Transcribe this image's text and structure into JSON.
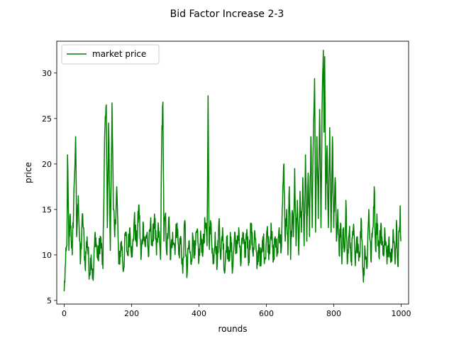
{
  "chart_data": {
    "type": "line",
    "title": "Bid Factor Increase 2-3",
    "xlabel": "rounds",
    "ylabel": "price",
    "xlim": [
      -22,
      1022
    ],
    "ylim": [
      4.6,
      33.5
    ],
    "xticks": [
      0,
      200,
      400,
      600,
      800,
      1000
    ],
    "yticks": [
      5,
      10,
      15,
      20,
      25,
      30
    ],
    "grid": false,
    "legend_position": "upper left",
    "series": [
      {
        "name": "market price",
        "color": "#008000",
        "n_points": 1000,
        "keypoints": [
          [
            0,
            6.0
          ],
          [
            4,
            9.0
          ],
          [
            8,
            11.0
          ],
          [
            10,
            21.0
          ],
          [
            14,
            10.5
          ],
          [
            18,
            14.5
          ],
          [
            24,
            10.0
          ],
          [
            30,
            18.0
          ],
          [
            34,
            23.0
          ],
          [
            37,
            12.0
          ],
          [
            42,
            16.5
          ],
          [
            48,
            9.0
          ],
          [
            55,
            14.5
          ],
          [
            62,
            8.8
          ],
          [
            68,
            12.0
          ],
          [
            75,
            8.0
          ],
          [
            80,
            10.0
          ],
          [
            86,
            7.2
          ],
          [
            92,
            12.5
          ],
          [
            100,
            9.5
          ],
          [
            108,
            12.0
          ],
          [
            115,
            8.5
          ],
          [
            120,
            22.8
          ],
          [
            125,
            26.5
          ],
          [
            128,
            13.0
          ],
          [
            132,
            24.5
          ],
          [
            137,
            10.5
          ],
          [
            142,
            26.7
          ],
          [
            146,
            15.0
          ],
          [
            150,
            12.0
          ],
          [
            156,
            17.5
          ],
          [
            162,
            9.0
          ],
          [
            170,
            11.5
          ],
          [
            176,
            8.3
          ],
          [
            182,
            12.5
          ],
          [
            188,
            10.0
          ],
          [
            195,
            13.0
          ],
          [
            202,
            9.8
          ],
          [
            208,
            14.0
          ],
          [
            215,
            11.0
          ],
          [
            222,
            15.5
          ],
          [
            228,
            9.5
          ],
          [
            235,
            13.5
          ],
          [
            240,
            11.0
          ],
          [
            246,
            12.5
          ],
          [
            250,
            9.8
          ],
          [
            256,
            13.5
          ],
          [
            262,
            11.0
          ],
          [
            268,
            14.5
          ],
          [
            274,
            10.0
          ],
          [
            280,
            13.0
          ],
          [
            286,
            9.5
          ],
          [
            290,
            24.2
          ],
          [
            293,
            26.8
          ],
          [
            296,
            11.5
          ],
          [
            300,
            14.5
          ],
          [
            305,
            10.0
          ],
          [
            310,
            14.0
          ],
          [
            316,
            9.5
          ],
          [
            322,
            12.5
          ],
          [
            328,
            10.8
          ],
          [
            335,
            13.5
          ],
          [
            340,
            10.0
          ],
          [
            346,
            12.0
          ],
          [
            352,
            8.0
          ],
          [
            358,
            13.8
          ],
          [
            364,
            7.5
          ],
          [
            370,
            11.5
          ],
          [
            376,
            9.0
          ],
          [
            382,
            12.0
          ],
          [
            388,
            10.0
          ],
          [
            394,
            12.5
          ],
          [
            400,
            9.5
          ],
          [
            406,
            12.0
          ],
          [
            412,
            10.5
          ],
          [
            418,
            13.5
          ],
          [
            424,
            11.0
          ],
          [
            427,
            27.5
          ],
          [
            430,
            11.5
          ],
          [
            436,
            13.5
          ],
          [
            442,
            9.0
          ],
          [
            448,
            12.5
          ],
          [
            454,
            8.8
          ],
          [
            460,
            14.0
          ],
          [
            465,
            9.5
          ],
          [
            470,
            13.0
          ],
          [
            476,
            8.0
          ],
          [
            482,
            12.0
          ],
          [
            488,
            9.3
          ],
          [
            494,
            11.8
          ],
          [
            500,
            8.5
          ],
          [
            506,
            12.5
          ],
          [
            512,
            10.2
          ],
          [
            518,
            13.0
          ],
          [
            524,
            8.8
          ],
          [
            530,
            12.5
          ],
          [
            536,
            9.7
          ],
          [
            542,
            12.8
          ],
          [
            548,
            9.4
          ],
          [
            554,
            13.5
          ],
          [
            560,
            10.2
          ],
          [
            566,
            12.5
          ],
          [
            572,
            8.5
          ],
          [
            578,
            11.2
          ],
          [
            584,
            8.8
          ],
          [
            590,
            12.0
          ],
          [
            596,
            9.5
          ],
          [
            602,
            12.8
          ],
          [
            608,
            10.3
          ],
          [
            614,
            13.5
          ],
          [
            620,
            9.2
          ],
          [
            626,
            12.0
          ],
          [
            632,
            10.0
          ],
          [
            638,
            13.0
          ],
          [
            644,
            10.5
          ],
          [
            648,
            15.5
          ],
          [
            652,
            20.0
          ],
          [
            656,
            11.5
          ],
          [
            660,
            15.0
          ],
          [
            664,
            10.0
          ],
          [
            668,
            17.5
          ],
          [
            672,
            9.5
          ],
          [
            676,
            14.5
          ],
          [
            680,
            12.0
          ],
          [
            684,
            19.5
          ],
          [
            688,
            11.0
          ],
          [
            692,
            16.0
          ],
          [
            696,
            10.0
          ],
          [
            700,
            17.0
          ],
          [
            704,
            12.5
          ],
          [
            708,
            18.5
          ],
          [
            712,
            11.0
          ],
          [
            716,
            21.0
          ],
          [
            720,
            11.5
          ],
          [
            724,
            19.0
          ],
          [
            728,
            12.0
          ],
          [
            732,
            23.0
          ],
          [
            736,
            13.0
          ],
          [
            740,
            24.5
          ],
          [
            743,
            29.4
          ],
          [
            746,
            12.5
          ],
          [
            750,
            23.0
          ],
          [
            754,
            14.0
          ],
          [
            758,
            26.0
          ],
          [
            762,
            13.0
          ],
          [
            766,
            28.0
          ],
          [
            769,
            32.5
          ],
          [
            771,
            23.5
          ],
          [
            773,
            31.8
          ],
          [
            776,
            15.0
          ],
          [
            780,
            22.0
          ],
          [
            784,
            13.0
          ],
          [
            788,
            24.0
          ],
          [
            792,
            12.5
          ],
          [
            796,
            23.0
          ],
          [
            800,
            13.0
          ],
          [
            804,
            18.5
          ],
          [
            808,
            11.5
          ],
          [
            812,
            15.0
          ],
          [
            816,
            10.0
          ],
          [
            820,
            13.5
          ],
          [
            824,
            9.0
          ],
          [
            828,
            12.5
          ],
          [
            832,
            10.5
          ],
          [
            836,
            16.0
          ],
          [
            840,
            9.0
          ],
          [
            846,
            12.5
          ],
          [
            852,
            9.5
          ],
          [
            858,
            13.0
          ],
          [
            864,
            8.8
          ],
          [
            870,
            12.0
          ],
          [
            876,
            9.8
          ],
          [
            882,
            13.8
          ],
          [
            888,
            7.0
          ],
          [
            892,
            11.0
          ],
          [
            898,
            8.5
          ],
          [
            904,
            15.0
          ],
          [
            910,
            9.5
          ],
          [
            916,
            13.0
          ],
          [
            920,
            17.5
          ],
          [
            924,
            10.5
          ],
          [
            928,
            14.5
          ],
          [
            934,
            9.8
          ],
          [
            940,
            13.5
          ],
          [
            946,
            10.0
          ],
          [
            952,
            12.5
          ],
          [
            958,
            9.0
          ],
          [
            964,
            12.0
          ],
          [
            970,
            9.5
          ],
          [
            976,
            12.8
          ],
          [
            982,
            9.0
          ],
          [
            986,
            13.8
          ],
          [
            990,
            8.8
          ],
          [
            994,
            12.5
          ],
          [
            997,
            15.4
          ],
          [
            999,
            11.5
          ]
        ]
      }
    ]
  }
}
